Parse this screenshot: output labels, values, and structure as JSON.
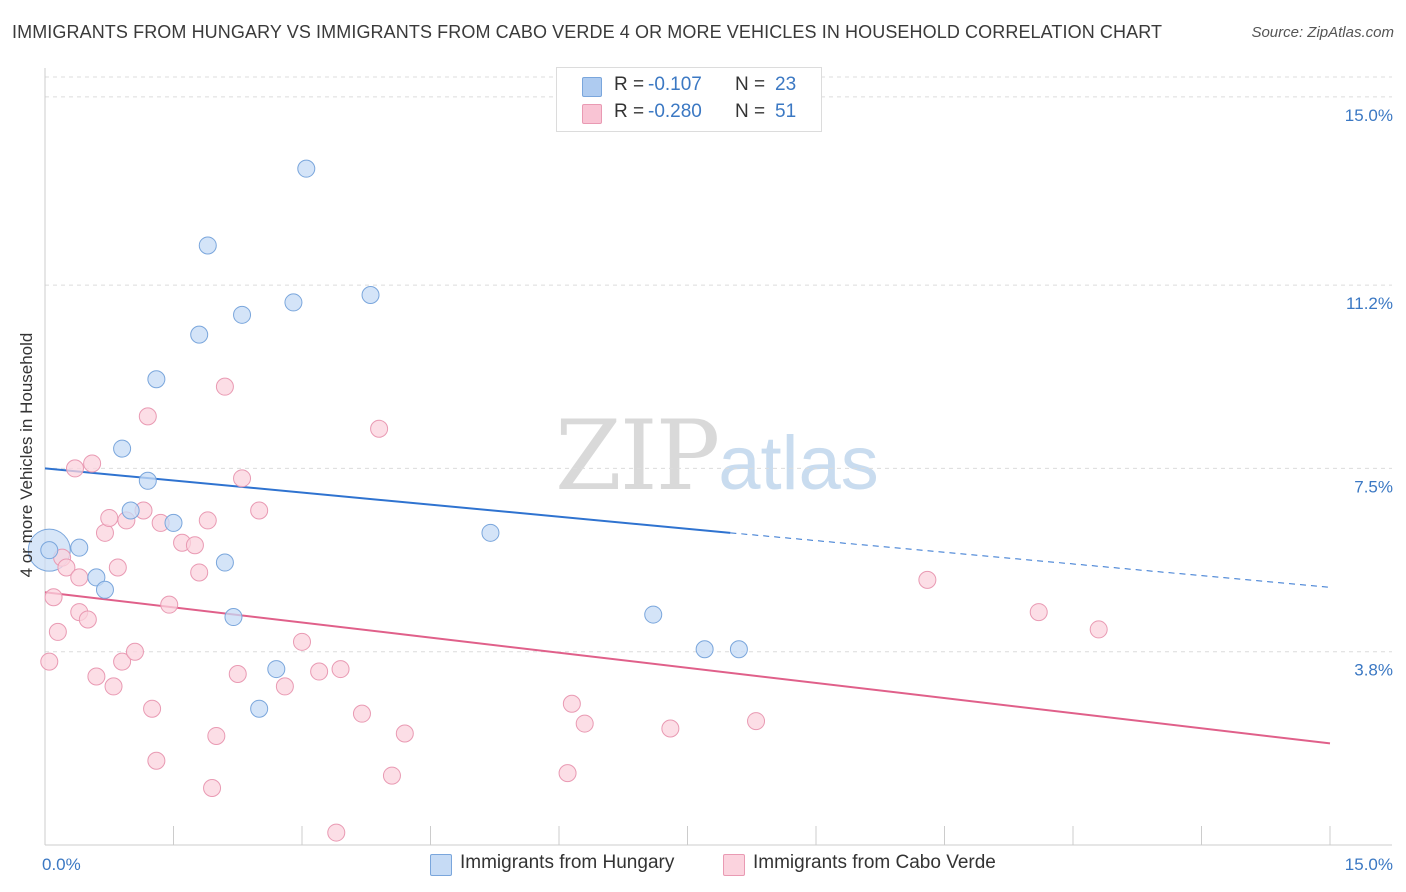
{
  "header": {
    "title": "IMMIGRANTS FROM HUNGARY VS IMMIGRANTS FROM CABO VERDE 4 OR MORE VEHICLES IN HOUSEHOLD CORRELATION CHART",
    "source": "Source: ZipAtlas.com"
  },
  "watermark": {
    "zip": "ZIP",
    "atlas": "atlas"
  },
  "legend": {
    "rows": [
      {
        "r_label": "R =",
        "r_value": "-0.107",
        "n_label": "N =",
        "n_value": "23",
        "color": "#aecbf0",
        "border": "#7aa6dc"
      },
      {
        "r_label": "R =",
        "r_value": "-0.280",
        "n_label": "N =",
        "n_value": "51",
        "color": "#f9c4d4",
        "border": "#e99ab3"
      }
    ]
  },
  "bottom_legend": {
    "items": [
      {
        "label": "Immigrants from Hungary",
        "color": "#c6dbf5",
        "border": "#7aa6dc"
      },
      {
        "label": "Immigrants from Cabo Verde",
        "color": "#fbd3de",
        "border": "#e99ab3"
      }
    ]
  },
  "chart_data": {
    "type": "scatter",
    "title": "IMMIGRANTS FROM HUNGARY VS IMMIGRANTS FROM CABO VERDE 4 OR MORE VEHICLES IN HOUSEHOLD CORRELATION CHART",
    "xlabel": "",
    "ylabel": "4 or more Vehicles in Household",
    "xlim": [
      0,
      15
    ],
    "ylim": [
      0,
      15.4
    ],
    "x_tick_labels": [
      "0.0%",
      "15.0%"
    ],
    "y_ticks": [
      {
        "value": 3.8,
        "label": "3.8%"
      },
      {
        "value": 7.5,
        "label": "7.5%"
      },
      {
        "value": 11.2,
        "label": "11.2%"
      },
      {
        "value": 15.0,
        "label": "15.0%"
      }
    ],
    "grid": true,
    "series": [
      {
        "name": "Immigrants from Hungary",
        "color": "#7aa6dc",
        "fill": "#c6dbf5",
        "trend": {
          "x0": 0.0,
          "y0": 7.5,
          "x1": 8.0,
          "y1": 6.2,
          "dash_x1": 15.0,
          "dash_y1": 5.1,
          "color": "#2f73d0"
        },
        "points": [
          [
            0.05,
            5.85
          ],
          [
            0.4,
            5.9
          ],
          [
            0.6,
            5.3
          ],
          [
            0.7,
            5.05
          ],
          [
            0.9,
            7.9
          ],
          [
            1.0,
            6.65
          ],
          [
            1.2,
            7.25
          ],
          [
            1.3,
            9.3
          ],
          [
            1.5,
            6.4
          ],
          [
            1.8,
            10.2
          ],
          [
            1.9,
            12.0
          ],
          [
            2.1,
            5.6
          ],
          [
            2.2,
            4.5
          ],
          [
            2.3,
            10.6
          ],
          [
            2.5,
            2.65
          ],
          [
            2.7,
            3.45
          ],
          [
            2.9,
            10.85
          ],
          [
            3.05,
            13.55
          ],
          [
            3.8,
            11.0
          ],
          [
            5.2,
            6.2
          ],
          [
            7.1,
            4.55
          ],
          [
            7.7,
            3.85
          ],
          [
            8.1,
            3.85
          ]
        ]
      },
      {
        "name": "Immigrants from Cabo Verde",
        "color": "#e99ab3",
        "fill": "#fbd3de",
        "trend": {
          "x0": 0.0,
          "y0": 5.0,
          "x1": 15.0,
          "y1": 1.95,
          "color": "#e0608a"
        },
        "points": [
          [
            0.05,
            3.6
          ],
          [
            0.1,
            4.9
          ],
          [
            0.15,
            4.2
          ],
          [
            0.2,
            5.7
          ],
          [
            0.25,
            5.5
          ],
          [
            0.35,
            7.5
          ],
          [
            0.4,
            5.3
          ],
          [
            0.4,
            4.6
          ],
          [
            0.5,
            4.45
          ],
          [
            0.55,
            7.6
          ],
          [
            0.6,
            3.3
          ],
          [
            0.7,
            6.2
          ],
          [
            0.75,
            6.5
          ],
          [
            0.8,
            3.1
          ],
          [
            0.85,
            5.5
          ],
          [
            0.9,
            3.6
          ],
          [
            0.95,
            6.45
          ],
          [
            1.05,
            3.8
          ],
          [
            1.15,
            6.65
          ],
          [
            1.2,
            8.55
          ],
          [
            1.25,
            2.65
          ],
          [
            1.3,
            1.6
          ],
          [
            1.35,
            6.4
          ],
          [
            1.45,
            4.75
          ],
          [
            1.6,
            6.0
          ],
          [
            1.75,
            5.95
          ],
          [
            1.8,
            5.4
          ],
          [
            1.9,
            6.45
          ],
          [
            1.95,
            1.05
          ],
          [
            2.0,
            2.1
          ],
          [
            2.1,
            9.15
          ],
          [
            2.25,
            3.35
          ],
          [
            2.3,
            7.3
          ],
          [
            2.5,
            6.65
          ],
          [
            2.8,
            3.1
          ],
          [
            3.0,
            4.0
          ],
          [
            3.2,
            3.4
          ],
          [
            3.4,
            0.15
          ],
          [
            3.45,
            3.45
          ],
          [
            3.7,
            2.55
          ],
          [
            3.9,
            8.3
          ],
          [
            4.05,
            1.3
          ],
          [
            4.2,
            2.15
          ],
          [
            6.1,
            1.35
          ],
          [
            6.15,
            2.75
          ],
          [
            6.3,
            2.35
          ],
          [
            7.3,
            2.25
          ],
          [
            8.3,
            2.4
          ],
          [
            10.3,
            5.25
          ],
          [
            11.6,
            4.6
          ],
          [
            12.3,
            4.25
          ]
        ]
      }
    ],
    "big_point": {
      "series": "Immigrants from Hungary",
      "x": 0.05,
      "y": 5.85
    }
  }
}
